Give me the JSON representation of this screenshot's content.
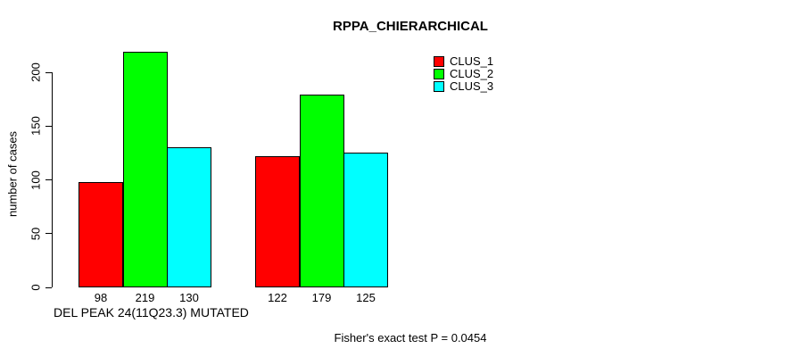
{
  "chart_data": {
    "type": "bar",
    "title": "RPPA_CHIERARCHICAL",
    "ylabel": "number of cases",
    "xlabel": "DEL PEAK 24(11Q23.3) MUTATED",
    "annotation": "Fisher's exact test P = 0.0454",
    "yticks": [
      0,
      50,
      100,
      150,
      200
    ],
    "ylim": [
      0,
      228
    ],
    "grid": false,
    "legend_position": "top-right",
    "n_groups": 2,
    "series": [
      {
        "name": "CLUS_1",
        "color": "#ff0000",
        "values": [
          98,
          122
        ]
      },
      {
        "name": "CLUS_2",
        "color": "#00ff00",
        "values": [
          219,
          179
        ]
      },
      {
        "name": "CLUS_3",
        "color": "#00ffff",
        "values": [
          130,
          125
        ]
      }
    ]
  },
  "colors": {
    "background": "#ffffff",
    "text": "#000000",
    "axis": "#000000"
  }
}
